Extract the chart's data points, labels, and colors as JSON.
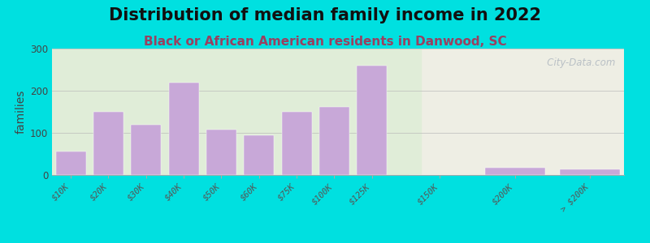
{
  "title": "Distribution of median family income in 2022",
  "subtitle": "Black or African American residents in Danwood, SC",
  "ylabel": "families",
  "categories": [
    "$10K",
    "$20K",
    "$30K",
    "$40K",
    "$50K",
    "$60K",
    "$75K",
    "$100K",
    "$125K",
    "$150K",
    "$200K",
    "> $200K"
  ],
  "values": [
    55,
    150,
    120,
    220,
    107,
    95,
    150,
    162,
    260,
    0,
    18,
    14
  ],
  "bar_color": "#c8a8d8",
  "bar_edge_color": "#c8a8d8",
  "background_outer": "#00e0e0",
  "plot_bg_left": "#e0edd8",
  "plot_bg_right": "#eeeee4",
  "ylim": [
    0,
    300
  ],
  "yticks": [
    0,
    100,
    200,
    300
  ],
  "title_fontsize": 15,
  "subtitle_fontsize": 11,
  "subtitle_color": "#9a4060",
  "ylabel_fontsize": 10,
  "watermark": "   City-Data.com",
  "left_section_end": 9,
  "bar_positions": [
    0,
    1,
    2,
    3,
    4,
    5,
    6,
    7,
    8,
    9.8,
    11.8,
    13.8
  ],
  "bar_widths": [
    0.8,
    0.8,
    0.8,
    0.8,
    0.8,
    0.8,
    0.8,
    0.8,
    0.8,
    1.6,
    1.6,
    1.6
  ],
  "xlim": [
    -0.5,
    14.7
  ]
}
